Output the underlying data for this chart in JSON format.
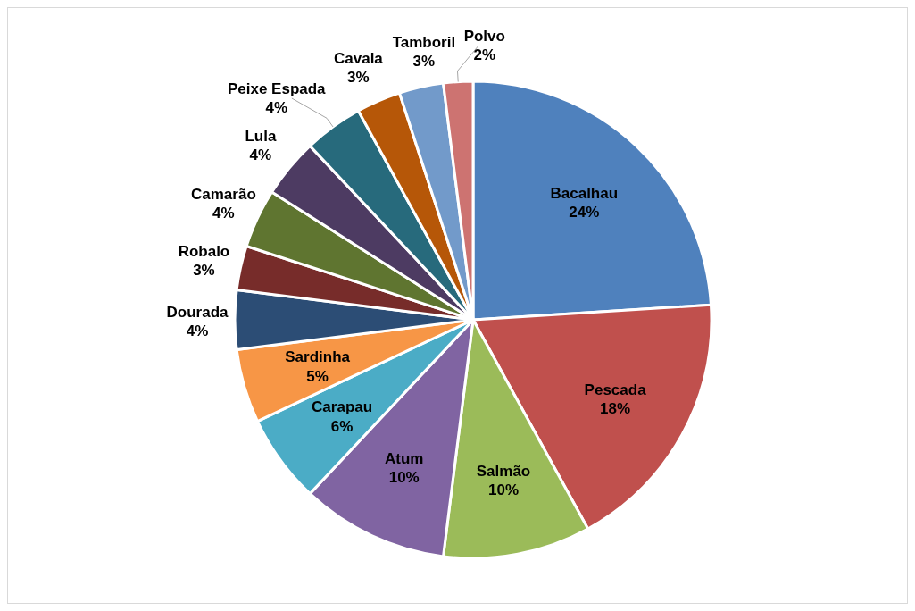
{
  "chart_data": {
    "type": "pie",
    "categories": [
      "Bacalhau",
      "Pescada",
      "Salmão",
      "Atum",
      "Carapau",
      "Sardinha",
      "Dourada",
      "Robalo",
      "Camarão",
      "Lula",
      "Peixe Espada",
      "Cavala",
      "Tamboril",
      "Polvo"
    ],
    "values": [
      24,
      18,
      10,
      10,
      6,
      5,
      4,
      3,
      4,
      4,
      4,
      3,
      3,
      2
    ],
    "colors": [
      "#4f81bd",
      "#c0504d",
      "#9bbb59",
      "#8064a2",
      "#4bacc6",
      "#f79646",
      "#2c4d75",
      "#772c2a",
      "#5f7530",
      "#4d3b62",
      "#276a7c",
      "#b65708",
      "#729aca",
      "#cd7371"
    ],
    "value_labels": [
      "24%",
      "18%",
      "10%",
      "10%",
      "6%",
      "5%",
      "4%",
      "3%",
      "4%",
      "4%",
      "4%",
      "3%",
      "3%",
      "2%"
    ]
  }
}
